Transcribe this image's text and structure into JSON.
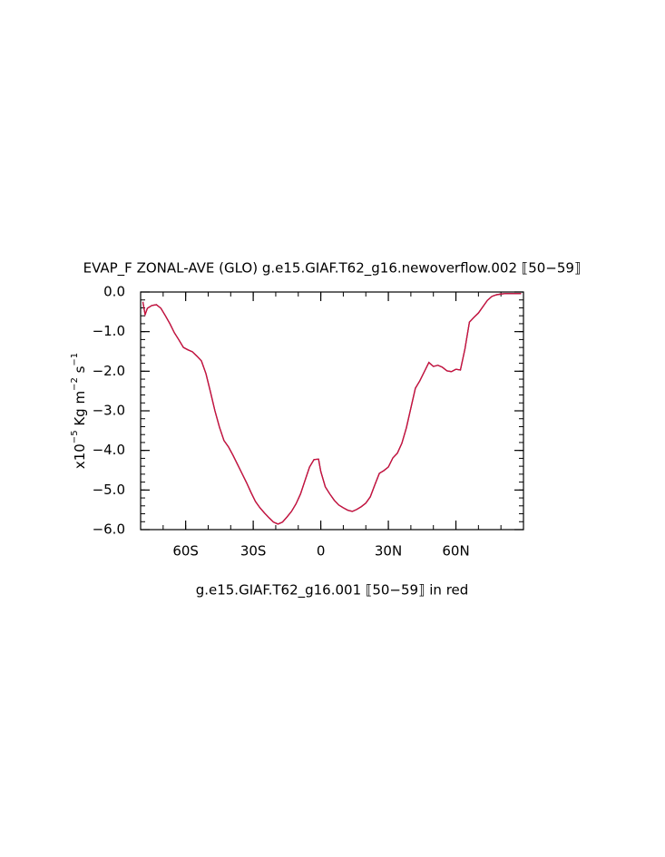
{
  "chart_data": {
    "type": "line",
    "title": "EVAP_F ZONAL-AVE (GLO) g.e15.GIAF.T62_g16.newoverflow.002 ⟦50−59⟧",
    "note": "g.e15.GIAF.T62_g16.001 ⟦50−59⟧ in red",
    "ylabel": [
      "x10",
      "−5",
      " Kg m",
      "−2",
      " s",
      "−1"
    ],
    "xlim": [
      -80,
      90
    ],
    "ylim": [
      -6,
      0
    ],
    "xticks": [
      {
        "value": -60,
        "label": "60S"
      },
      {
        "value": -30,
        "label": "30S"
      },
      0,
      {
        "value": 30,
        "label": "30N"
      },
      {
        "value": 60,
        "label": "60N"
      }
    ],
    "yticks": [
      {
        "value": 0,
        "label": "0.0"
      },
      {
        "value": -1,
        "label": "−1.0"
      },
      {
        "value": -2,
        "label": "−2.0"
      },
      {
        "value": -3,
        "label": "−3.0"
      },
      {
        "value": -4,
        "label": "−4.0"
      },
      {
        "value": -5,
        "label": "−5.0"
      },
      {
        "value": -6,
        "label": "−6.0"
      }
    ],
    "x": [
      -79,
      -78,
      -77,
      -75,
      -73,
      -71,
      -69,
      -67,
      -65,
      -63,
      -61,
      -59,
      -57,
      -55,
      -53,
      -51,
      -49,
      -47,
      -45,
      -43,
      -41,
      -39,
      -37,
      -35,
      -33,
      -31,
      -29,
      -27,
      -25,
      -23,
      -21,
      -19,
      -17,
      -15,
      -13,
      -11,
      -9,
      -7,
      -5,
      -3,
      -1,
      0,
      2,
      4,
      6,
      8,
      10,
      12,
      14,
      16,
      18,
      20,
      22,
      24,
      26,
      28,
      30,
      32,
      34,
      36,
      38,
      40,
      42,
      44,
      46,
      48,
      50,
      52,
      54,
      56,
      58,
      60,
      62,
      64,
      66,
      68,
      70,
      72,
      74,
      76,
      78,
      80,
      82,
      84,
      86,
      88,
      89
    ],
    "series": [
      {
        "color": "#202060",
        "values": [
          -0.25,
          -0.57,
          -0.41,
          -0.34,
          -0.32,
          -0.41,
          -0.6,
          -0.8,
          -1.03,
          -1.21,
          -1.4,
          -1.46,
          -1.51,
          -1.62,
          -1.74,
          -2.06,
          -2.52,
          -3.0,
          -3.41,
          -3.75,
          -3.91,
          -4.12,
          -4.35,
          -4.58,
          -4.81,
          -5.06,
          -5.29,
          -5.45,
          -5.58,
          -5.7,
          -5.81,
          -5.86,
          -5.81,
          -5.68,
          -5.54,
          -5.35,
          -5.1,
          -4.76,
          -4.42,
          -4.23,
          -4.22,
          -4.53,
          -4.92,
          -5.1,
          -5.26,
          -5.38,
          -5.45,
          -5.51,
          -5.54,
          -5.49,
          -5.42,
          -5.33,
          -5.17,
          -4.87,
          -4.58,
          -4.51,
          -4.42,
          -4.19,
          -4.07,
          -3.82,
          -3.43,
          -2.93,
          -2.43,
          -2.24,
          -2.01,
          -1.78,
          -1.88,
          -1.85,
          -1.9,
          -1.99,
          -2.01,
          -1.95,
          -1.97,
          -1.44,
          -0.76,
          -0.64,
          -0.53,
          -0.37,
          -0.21,
          -0.11,
          -0.07,
          -0.05,
          -0.04,
          -0.04,
          -0.04,
          -0.04,
          -0.04
        ]
      },
      {
        "color": "#d0103a",
        "values": [
          -0.25,
          -0.57,
          -0.41,
          -0.34,
          -0.32,
          -0.41,
          -0.6,
          -0.8,
          -1.03,
          -1.21,
          -1.4,
          -1.46,
          -1.51,
          -1.62,
          -1.74,
          -2.06,
          -2.52,
          -3.0,
          -3.41,
          -3.75,
          -3.91,
          -4.12,
          -4.35,
          -4.58,
          -4.81,
          -5.06,
          -5.29,
          -5.45,
          -5.58,
          -5.7,
          -5.81,
          -5.86,
          -5.81,
          -5.68,
          -5.54,
          -5.35,
          -5.1,
          -4.76,
          -4.42,
          -4.23,
          -4.22,
          -4.53,
          -4.92,
          -5.1,
          -5.26,
          -5.38,
          -5.45,
          -5.51,
          -5.54,
          -5.49,
          -5.42,
          -5.33,
          -5.17,
          -4.87,
          -4.58,
          -4.51,
          -4.42,
          -4.19,
          -4.07,
          -3.82,
          -3.43,
          -2.93,
          -2.43,
          -2.24,
          -2.01,
          -1.78,
          -1.88,
          -1.85,
          -1.9,
          -1.99,
          -2.01,
          -1.95,
          -1.97,
          -1.44,
          -0.76,
          -0.64,
          -0.53,
          -0.37,
          -0.21,
          -0.11,
          -0.07,
          -0.05,
          -0.04,
          -0.04,
          -0.04,
          -0.04,
          -0.04
        ]
      }
    ]
  }
}
